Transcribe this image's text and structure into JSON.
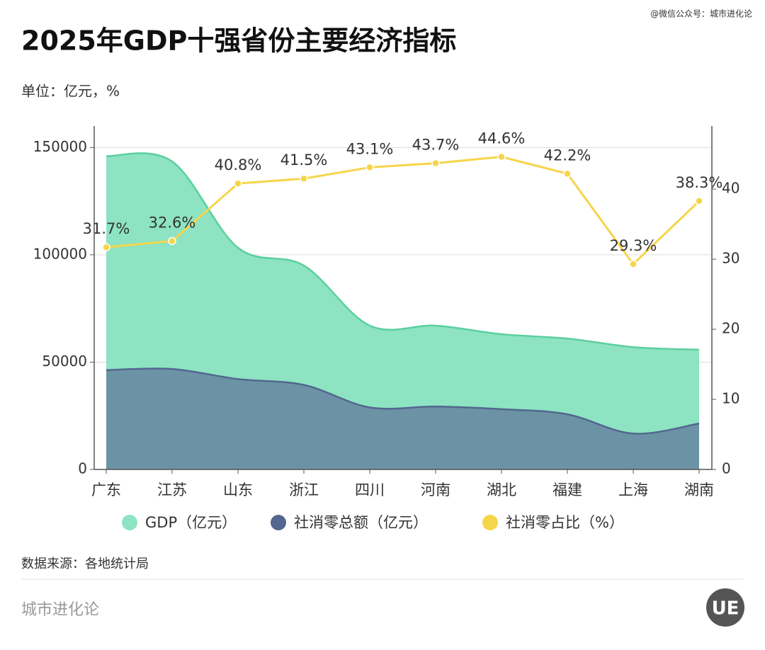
{
  "chart_data": {
    "type": "combo",
    "title": "2025年GDP十强省份主要经济指标",
    "subtitle": "单位：亿元，%",
    "categories": [
      "广东",
      "江苏",
      "山东",
      "浙江",
      "四川",
      "河南",
      "湖北",
      "福建",
      "上海",
      "湖南"
    ],
    "series": [
      {
        "name": "GDP（亿元）",
        "type": "area",
        "color": "#8de3c2",
        "stroke": "#5ccf9f",
        "values": [
          146000,
          143500,
          103300,
          95000,
          67000,
          67000,
          63000,
          61000,
          57000,
          55800
        ]
      },
      {
        "name": "社消零总额（亿元）",
        "type": "area",
        "color": "#6b93a5",
        "stroke": "#53668f",
        "values": [
          46300,
          46800,
          42100,
          39400,
          28900,
          29300,
          28100,
          25700,
          16700,
          21400
        ]
      },
      {
        "name": "社消零占比（%）",
        "type": "line",
        "axis": "y2",
        "color": "#f5d54a",
        "values": [
          31.7,
          32.6,
          40.8,
          41.5,
          43.1,
          43.7,
          44.6,
          42.2,
          29.3,
          38.3
        ],
        "value_labels": [
          "31.7%",
          "32.6%",
          "40.8%",
          "41.5%",
          "43.1%",
          "43.7%",
          "44.6%",
          "42.2%",
          "29.3%",
          "38.3%"
        ]
      }
    ],
    "ylim": [
      0,
      160000
    ],
    "yticks": [
      0,
      50000,
      100000,
      150000
    ],
    "y2lim": [
      0,
      49
    ],
    "y2ticks": [
      0,
      10,
      20,
      30,
      40
    ],
    "grid": true,
    "legend": "bottom",
    "source": "数据来源：各地统计局"
  },
  "header_note": "@微信公众号：城市进化论",
  "footer": "城市进化论",
  "logo": "UE"
}
